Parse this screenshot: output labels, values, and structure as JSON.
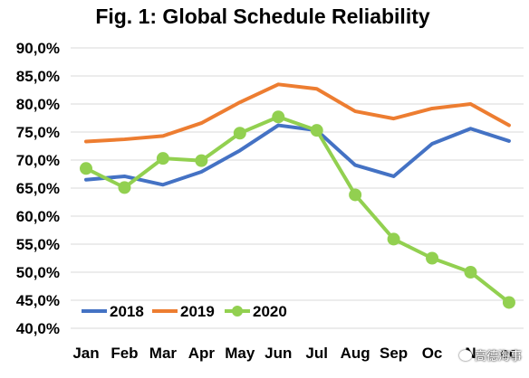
{
  "chart_data": {
    "type": "line",
    "title": "Fig. 1: Global Schedule Reliability",
    "categories": [
      "Jan",
      "Feb",
      "Mar",
      "Apr",
      "May",
      "Jun",
      "Jul",
      "Aug",
      "Sep",
      "Oct",
      "Nov",
      "Dec"
    ],
    "category_labels": [
      "Jan",
      "Feb",
      "Mar",
      "Apr",
      "May",
      "Jun",
      "Jul",
      "Aug",
      "Sep",
      "Oc",
      "N",
      "ec"
    ],
    "ylim": [
      40,
      90
    ],
    "yticks": [
      40,
      45,
      50,
      55,
      60,
      65,
      70,
      75,
      80,
      85,
      90
    ],
    "ytick_labels": [
      "40,0%",
      "45,0%",
      "50,0%",
      "55,0%",
      "60,0%",
      "65,0%",
      "70,0%",
      "75,0%",
      "80,0%",
      "85,0%",
      "90,0%"
    ],
    "grid": true,
    "legend_position": "bottom-left",
    "series": [
      {
        "name": "2018",
        "color": "#4472C4",
        "marker": "none",
        "values": [
          66.5,
          67.1,
          65.6,
          67.9,
          71.7,
          76.2,
          75.3,
          69.1,
          67.1,
          72.9,
          75.6,
          73.4
        ]
      },
      {
        "name": "2019",
        "color": "#ED7D31",
        "marker": "none",
        "values": [
          73.3,
          73.7,
          74.3,
          76.6,
          80.3,
          83.5,
          82.7,
          78.7,
          77.4,
          79.2,
          80.0,
          76.2
        ]
      },
      {
        "name": "2020",
        "color": "#92D050",
        "marker": "circle",
        "values": [
          68.5,
          65.1,
          70.3,
          69.9,
          74.8,
          77.7,
          75.3,
          63.8,
          55.9,
          52.5,
          50.0,
          44.6
        ]
      }
    ]
  },
  "watermark": {
    "text": "高德海事",
    "icon": "wechat-icon"
  }
}
